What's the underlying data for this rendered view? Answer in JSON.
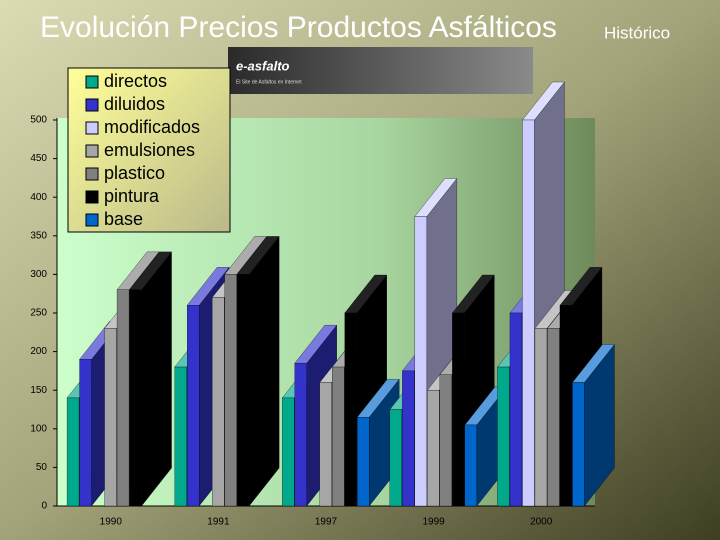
{
  "chart_data": {
    "type": "bar3d",
    "title": "Evolución Precios Productos Asfálticos",
    "subtitle": "Histórico",
    "logo_text": "e-asfalto",
    "logo_tagline": "El Site de Asfaltos en Internet",
    "categories": [
      "1990",
      "1991",
      "1997",
      "1999",
      "2000"
    ],
    "series": [
      {
        "name": "directos",
        "color": "#00a88c",
        "values": [
          140,
          180,
          140,
          125,
          180
        ]
      },
      {
        "name": "diluidos",
        "color": "#3333cc",
        "values": [
          190,
          260,
          185,
          175,
          250
        ]
      },
      {
        "name": "modificados",
        "color": "#ccccff",
        "values": [
          null,
          null,
          null,
          375,
          500
        ]
      },
      {
        "name": "emulsiones",
        "color": "#a6a6a6",
        "values": [
          230,
          270,
          160,
          150,
          230
        ]
      },
      {
        "name": "plastico",
        "color": "#808080",
        "values": [
          280,
          300,
          180,
          170,
          230
        ]
      },
      {
        "name": "pintura",
        "color": "#000000",
        "values": [
          280,
          300,
          250,
          250,
          260
        ]
      },
      {
        "name": "base",
        "color": "#0066cc",
        "values": [
          null,
          null,
          115,
          105,
          160
        ]
      }
    ],
    "ylim": [
      0,
      500
    ],
    "yticks": [
      0,
      50,
      100,
      150,
      200,
      250,
      300,
      350,
      400,
      450,
      500
    ],
    "legend": "top-left"
  }
}
